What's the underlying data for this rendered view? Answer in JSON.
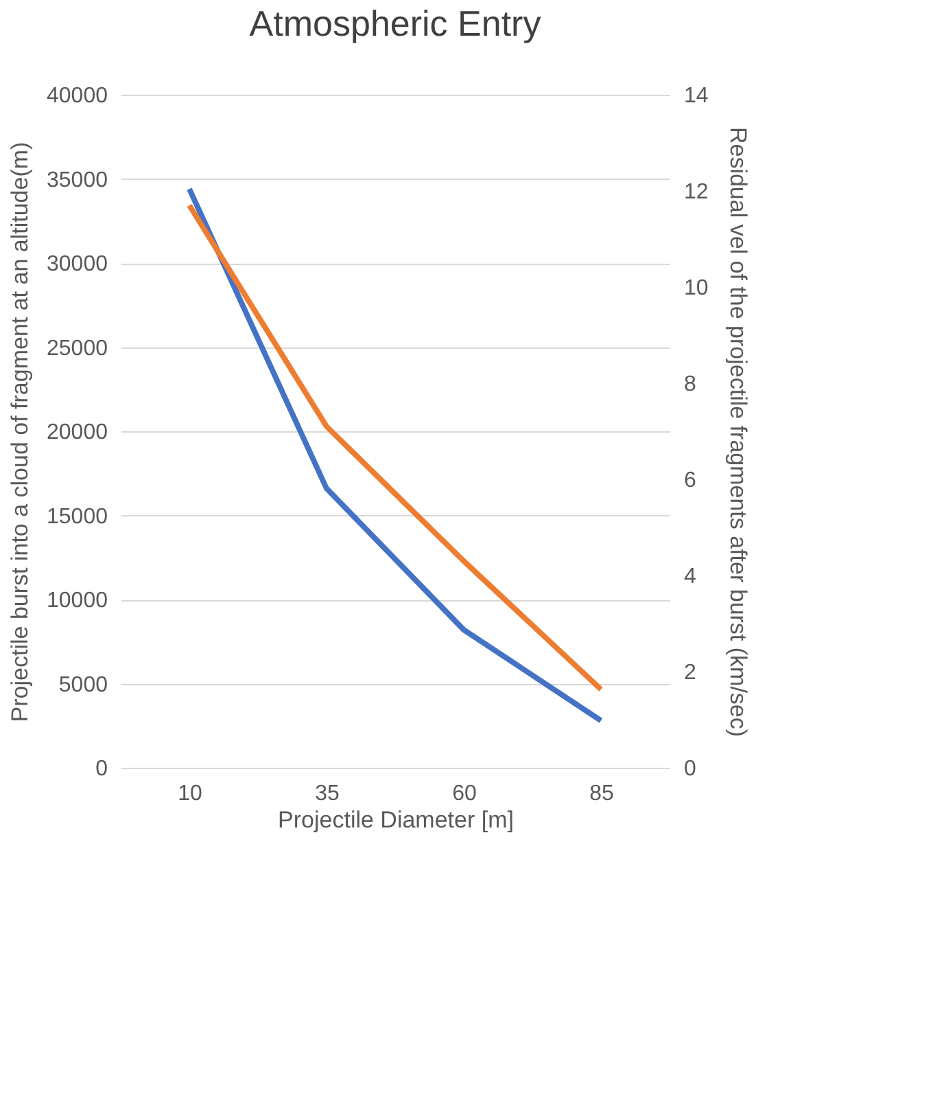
{
  "chart_data": {
    "type": "line",
    "title": "Atmospheric Entry",
    "xlabel": "Projectile Diameter [m]",
    "ylabel": "Projectile burst into a cloud of fragment at an altitude(m)",
    "y2label": "Residual vel of the projectile fragments after burst (km/sec)",
    "categories": [
      "10",
      "35",
      "60",
      "85"
    ],
    "series": [
      {
        "color": "#4472c4",
        "values": [
          34400,
          16600,
          8200,
          2800
        ]
      },
      {
        "color": "#ed7d31",
        "values": [
          11.7,
          7.1,
          4.3,
          1.63
        ],
        "axis": "y2"
      }
    ],
    "ylim": [
      0,
      40000
    ],
    "yticks": [
      0,
      5000,
      10000,
      15000,
      20000,
      25000,
      30000,
      35000,
      40000
    ],
    "y2lim": [
      0,
      14
    ],
    "y2ticks": [
      0,
      2,
      4,
      6,
      8,
      10,
      12,
      14
    ],
    "grid": "y",
    "marker": "none",
    "line_style": "solid"
  }
}
